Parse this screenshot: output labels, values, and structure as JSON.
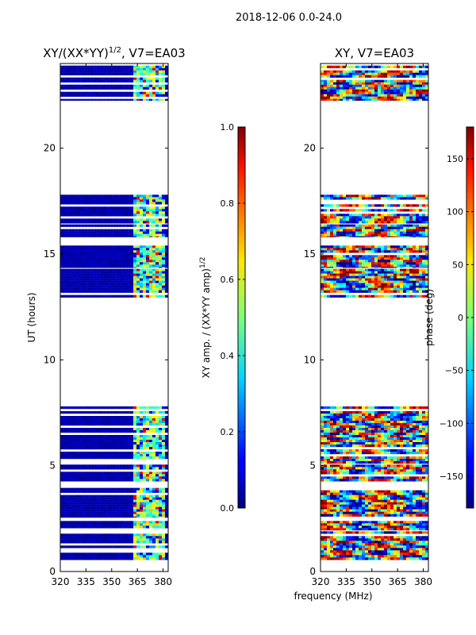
{
  "figure": {
    "suptitle": "2018-12-06 0.0-24.0",
    "shared_xlabel": "frequency (MHz)"
  },
  "chart_data": [
    {
      "type": "heatmap",
      "title": "XY/(XX*YY)",
      "title_sup": "1/2",
      "title_suffix": ", V7=EA03",
      "xlabel": "",
      "ylabel": "UT (hours)",
      "xlim": [
        320,
        383
      ],
      "ylim": [
        0,
        24
      ],
      "xticks": [
        320,
        335,
        350,
        365,
        380
      ],
      "yticks": [
        0,
        5,
        10,
        15,
        20
      ],
      "colormap": "jet",
      "colorbar": {
        "label": "XY amp. / (XX*YY amp)",
        "label_sup": "1/2",
        "vmin": 0.0,
        "vmax": 1.0,
        "ticks": [
          "0.0",
          "0.2",
          "0.4",
          "0.6",
          "0.8",
          "1.0"
        ],
        "tick_values": [
          0.0,
          0.2,
          0.4,
          0.6,
          0.8,
          1.0
        ]
      },
      "data_bands_hours": [
        [
          0.55,
          1.9
        ],
        [
          1.95,
          2.5
        ],
        [
          2.55,
          3.95
        ],
        [
          4.05,
          5.05
        ],
        [
          5.1,
          7.8
        ],
        [
          12.95,
          14.3
        ],
        [
          14.35,
          15.4
        ],
        [
          15.8,
          16.4
        ],
        [
          16.45,
          17.8
        ],
        [
          22.25,
          23.9
        ]
      ],
      "high_amp_freq_range_mhz": [
        362,
        381
      ]
    },
    {
      "type": "heatmap",
      "title": "XY, V7=EA03",
      "xlabel": "frequency (MHz)",
      "ylabel": "",
      "xlim": [
        320,
        383
      ],
      "ylim": [
        0,
        24
      ],
      "xticks": [
        320,
        335,
        350,
        365,
        380
      ],
      "yticks": [
        0,
        5,
        10,
        15,
        20
      ],
      "colormap": "jet",
      "colorbar": {
        "label": "phase (deg)",
        "vmin": -180,
        "vmax": 180,
        "ticks": [
          "150",
          "100",
          "50",
          "0",
          "−50",
          "−100",
          "−150"
        ],
        "tick_values": [
          150,
          100,
          50,
          0,
          -50,
          -100,
          -150
        ]
      },
      "data_bands_hours": [
        [
          0.55,
          1.9
        ],
        [
          1.95,
          2.5
        ],
        [
          2.55,
          3.95
        ],
        [
          4.05,
          5.05
        ],
        [
          5.1,
          7.8
        ],
        [
          12.95,
          14.3
        ],
        [
          14.35,
          15.4
        ],
        [
          15.8,
          16.4
        ],
        [
          16.45,
          17.8
        ],
        [
          22.25,
          23.9
        ]
      ]
    }
  ]
}
